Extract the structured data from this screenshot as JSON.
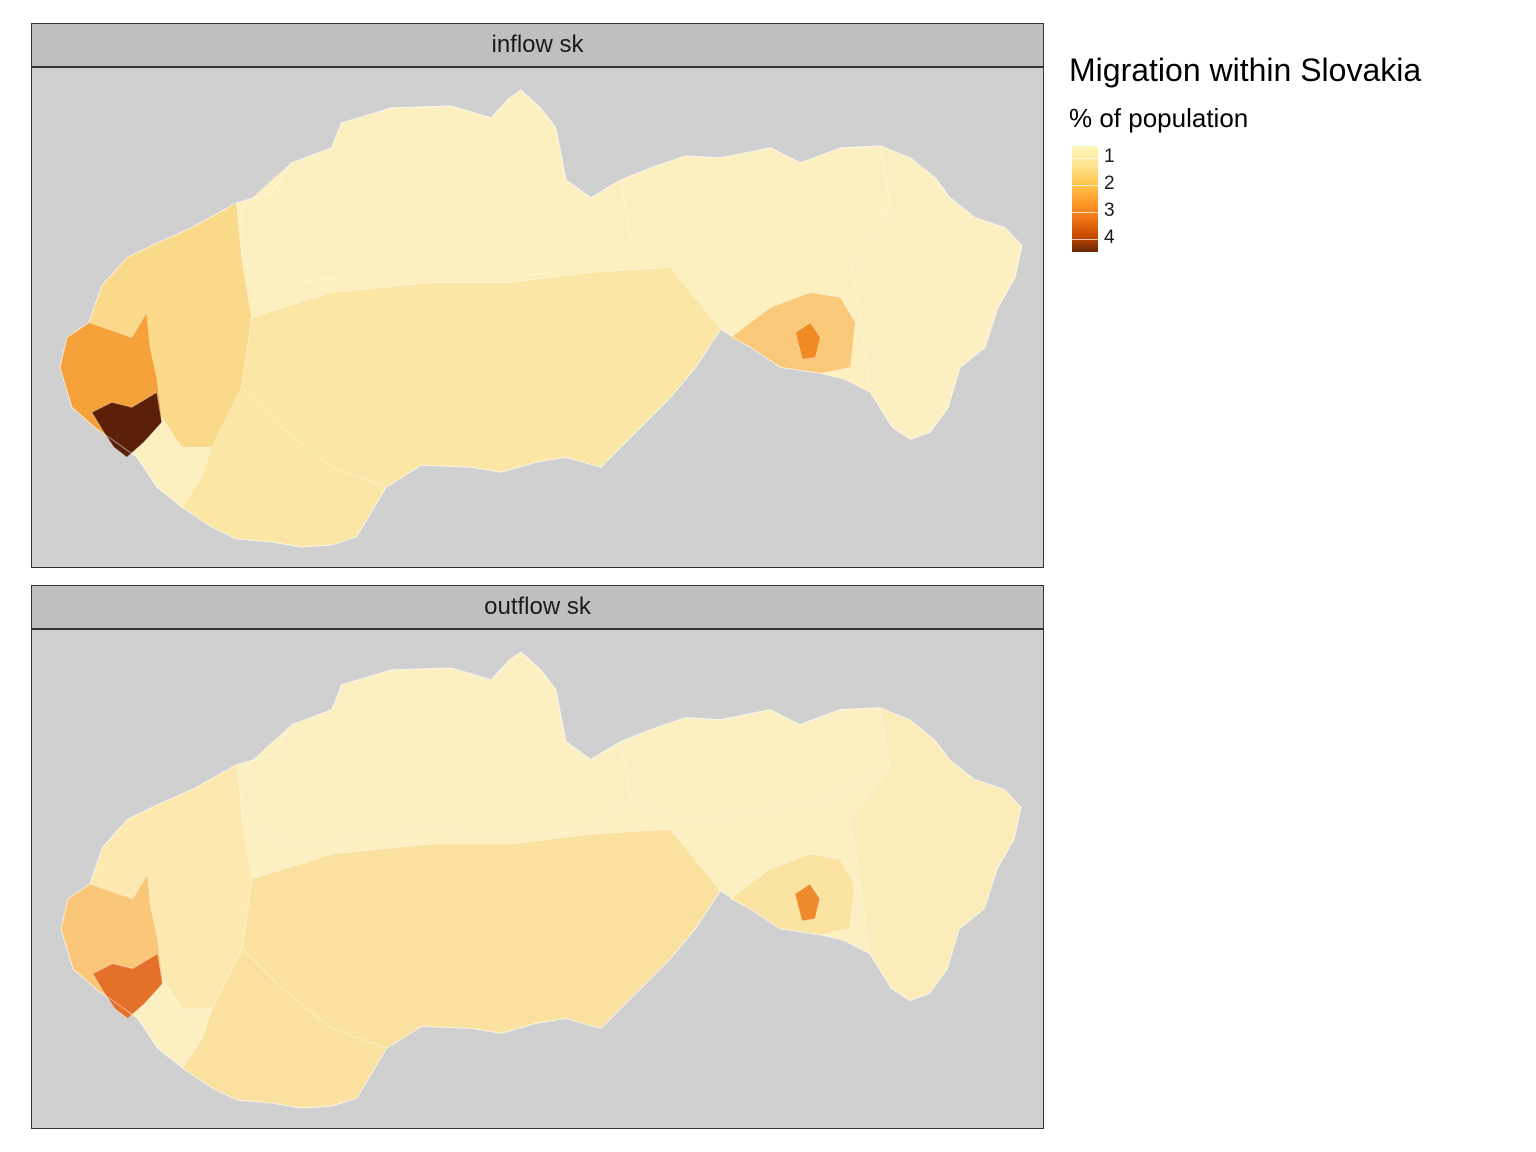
{
  "legend": {
    "title": "Migration within Slovakia",
    "subtitle": "% of population",
    "labels": [
      "1",
      "2",
      "3",
      "4"
    ],
    "scale": [
      "#fff7bc",
      "#fee391",
      "#fec44f",
      "#fe9929",
      "#ec7014",
      "#cc4c02",
      "#662506"
    ]
  },
  "panels": [
    {
      "id": "inflow",
      "label": "inflow sk",
      "fill": {
        "west": "#fbd98a",
        "west_core": "#f5a23a",
        "bratislava": "#5c1f08",
        "kosice_ring": "#f9c979",
        "kosice_core": "#f08a23",
        "north": "#fdf0c0",
        "south": "#fbe6a5",
        "east": "#fcf0c2"
      }
    },
    {
      "id": "outflow",
      "label": "outflow sk",
      "fill": {
        "west": "#fde9b0",
        "west_core": "#fac778",
        "bratislava": "#e4702a",
        "kosice_ring": "#fbe3a1",
        "kosice_core": "#ee8a2c",
        "north": "#fcefc2",
        "south": "#fbe1a0",
        "east": "#fcecb9"
      }
    }
  ]
}
